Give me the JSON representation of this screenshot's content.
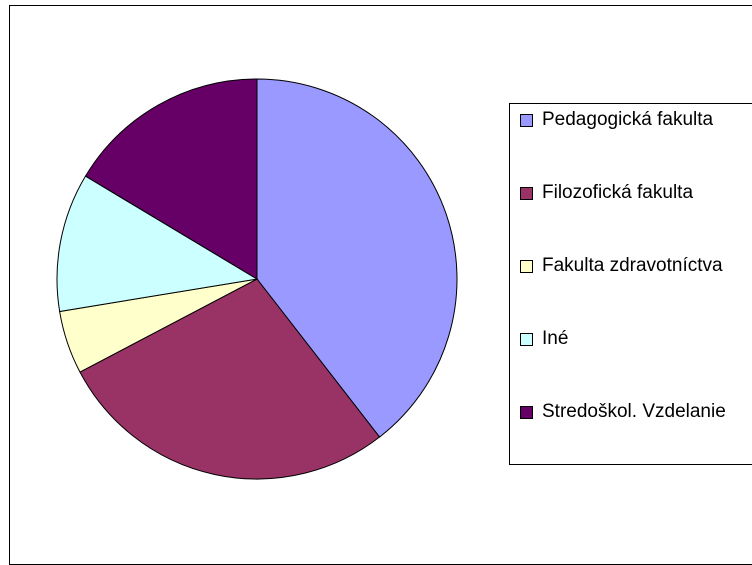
{
  "chart_data": {
    "type": "pie",
    "categories": [
      "Pedagogická fakulta",
      "Filozofická fakulta",
      "Fakulta zdravotníctva",
      "Iné",
      "Stredoškol. Vzdelanie"
    ],
    "values": [
      39.5,
      27.8,
      5.1,
      11.2,
      16.4
    ],
    "colors": [
      "#9999ff",
      "#993366",
      "#ffffcc",
      "#ccffff",
      "#660066"
    ]
  }
}
